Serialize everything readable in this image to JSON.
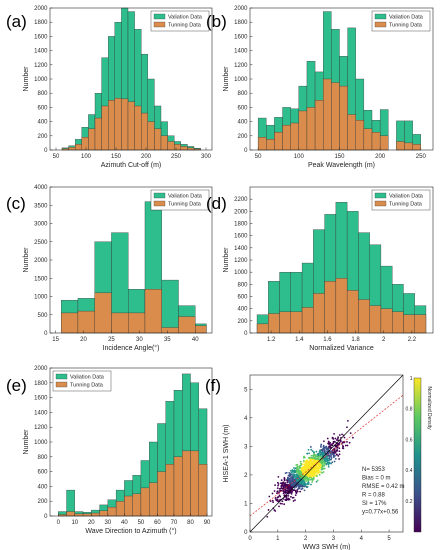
{
  "colors": {
    "validation": "#2ebd8c",
    "tuning": "#d98c4c",
    "bar_edge": "#333333"
  },
  "chart_data": [
    {
      "panel": "(a)",
      "type": "bar",
      "xlabel": "Azimuth Cut-off (m)",
      "ylabel": "Number",
      "xlim": [
        40,
        310
      ],
      "ylim": [
        0,
        2000
      ],
      "xticks": [
        50,
        100,
        150,
        200,
        250,
        300
      ],
      "yticks": [
        0,
        200,
        400,
        600,
        800,
        1000,
        1200,
        1400,
        1600,
        1800,
        2000
      ],
      "legend": [
        "Valiation Data",
        "Tunning Data"
      ],
      "legend_position": "top-right",
      "bin_edges": [
        60,
        71,
        82,
        93,
        104,
        115,
        126,
        137,
        148,
        159,
        170,
        181,
        192,
        203,
        214,
        225,
        236,
        247,
        258,
        269,
        280,
        291
      ],
      "series": [
        {
          "name": "Valiation Data",
          "values": [
            30,
            60,
            150,
            320,
            500,
            800,
            1300,
            1600,
            1800,
            2000,
            1950,
            1700,
            1350,
            1000,
            620,
            400,
            200,
            120,
            80,
            50,
            25
          ]
        },
        {
          "name": "Tunning Data",
          "values": [
            20,
            40,
            80,
            180,
            300,
            450,
            620,
            700,
            730,
            720,
            680,
            620,
            520,
            400,
            300,
            200,
            120,
            80,
            50,
            30,
            15
          ]
        }
      ]
    },
    {
      "panel": "(b)",
      "type": "bar",
      "xlabel": "Peak Wavelength (m)",
      "ylabel": "Number",
      "xlim": [
        40,
        265
      ],
      "ylim": [
        0,
        2000
      ],
      "xticks": [
        50,
        100,
        150,
        200,
        250
      ],
      "yticks": [
        0,
        200,
        400,
        600,
        800,
        1000,
        1200,
        1400,
        1600,
        1800,
        2000
      ],
      "legend": [
        "Valiation Data",
        "Tunning Data"
      ],
      "legend_position": "top-right",
      "bin_edges": [
        50,
        60,
        70,
        80,
        90,
        100,
        110,
        120,
        130,
        140,
        150,
        160,
        170,
        180,
        190,
        200,
        210,
        220,
        230,
        240,
        250
      ],
      "series": [
        {
          "name": "Valiation Data",
          "values": [
            450,
            350,
            460,
            600,
            580,
            900,
            1250,
            1100,
            1950,
            1700,
            1320,
            1720,
            1000,
            560,
            420,
            570,
            0,
            410,
            410,
            220
          ]
        },
        {
          "name": "Tunning Data",
          "values": [
            180,
            150,
            250,
            350,
            380,
            550,
            600,
            700,
            1000,
            950,
            900,
            500,
            420,
            300,
            250,
            200,
            0,
            120,
            100,
            80
          ]
        }
      ]
    },
    {
      "panel": "(c)",
      "type": "bar",
      "xlabel": "Incidence Angle(°)",
      "ylabel": "Number",
      "xlim": [
        14,
        43
      ],
      "ylim": [
        0,
        4000
      ],
      "xticks": [
        15,
        20,
        25,
        30,
        35,
        40
      ],
      "yticks": [
        0,
        500,
        1000,
        1500,
        2000,
        2500,
        3000,
        3500,
        4000
      ],
      "legend": [
        "Valiation Data",
        "Tunning Data"
      ],
      "legend_position": "top-right",
      "bin_edges": [
        16,
        19,
        22,
        25,
        28,
        31,
        34,
        37,
        40,
        42
      ],
      "series": [
        {
          "name": "Valiation Data",
          "values": [
            900,
            950,
            2500,
            2750,
            1200,
            3600,
            1450,
            750,
            250
          ]
        },
        {
          "name": "Tunning Data",
          "values": [
            550,
            600,
            1100,
            550,
            550,
            1200,
            150,
            450,
            200
          ]
        }
      ]
    },
    {
      "panel": "(d)",
      "type": "bar",
      "xlabel": "Normalized Variance",
      "ylabel": "Number",
      "xlim": [
        1.05,
        2.35
      ],
      "ylim": [
        0,
        2400
      ],
      "xticks": [
        1.2,
        1.4,
        1.6,
        1.8,
        2.0,
        2.2
      ],
      "yticks": [
        0,
        200,
        400,
        600,
        800,
        1000,
        1200,
        1400,
        1600,
        1800,
        2000,
        2200
      ],
      "legend": [
        "Valiation Data",
        "Tunning Data"
      ],
      "legend_position": "top-right",
      "bin_edges": [
        1.1,
        1.18,
        1.26,
        1.34,
        1.42,
        1.5,
        1.58,
        1.66,
        1.74,
        1.82,
        1.9,
        1.98,
        2.06,
        2.14,
        2.22,
        2.3
      ],
      "series": [
        {
          "name": "Valiation Data",
          "values": [
            300,
            850,
            1000,
            1000,
            1150,
            1700,
            1950,
            2150,
            2000,
            1650,
            1450,
            1100,
            800,
            650,
            450
          ]
        },
        {
          "name": "Tunning Data",
          "values": [
            150,
            320,
            350,
            350,
            420,
            650,
            850,
            900,
            700,
            550,
            450,
            400,
            350,
            300,
            300
          ]
        }
      ]
    },
    {
      "panel": "(e)",
      "type": "bar",
      "xlabel": "Wave Direction to Azimuth (°)",
      "ylabel": "Number",
      "xlim": [
        -5,
        93
      ],
      "ylim": [
        0,
        2000
      ],
      "xticks": [
        0,
        10,
        20,
        30,
        40,
        50,
        60,
        70,
        80,
        90
      ],
      "yticks": [
        0,
        200,
        400,
        600,
        800,
        1000,
        1200,
        1400,
        1600,
        1800,
        2000
      ],
      "legend": [
        "Valiation Data",
        "Tunning Data"
      ],
      "legend_position": "top-left",
      "bin_edges": [
        0,
        5,
        10,
        15,
        20,
        25,
        30,
        35,
        40,
        45,
        50,
        55,
        60,
        65,
        70,
        75,
        80,
        85,
        90
      ],
      "series": [
        {
          "name": "Valiation Data",
          "values": [
            60,
            350,
            60,
            50,
            80,
            150,
            220,
            350,
            480,
            550,
            750,
            1000,
            1250,
            1550,
            1700,
            1920,
            1800,
            1450
          ]
        },
        {
          "name": "Tunning Data",
          "values": [
            20,
            60,
            30,
            30,
            40,
            70,
            120,
            200,
            270,
            300,
            380,
            450,
            600,
            700,
            800,
            880,
            880,
            700
          ]
        }
      ]
    },
    {
      "panel": "(f)",
      "type": "scatter",
      "xlabel": "WW3 SWH (m)",
      "ylabel": "HISEA-1 SWH (m)",
      "xlim": [
        0,
        5.5
      ],
      "ylim": [
        0,
        5.5
      ],
      "xticks": [
        0,
        1,
        2,
        3,
        4,
        5
      ],
      "yticks": [
        0,
        1,
        2,
        3,
        4,
        5
      ],
      "colorbar": {
        "label": "Normalized Density",
        "ticks": [
          0.2,
          0.4,
          0.6,
          0.8,
          1
        ],
        "range": [
          0,
          1
        ]
      },
      "fit_line": {
        "slope": 0.77,
        "intercept": 0.56
      },
      "stats": [
        "N= 5353",
        "Bias = 0 m",
        "RMSE = 0.42 m",
        "R = 0.88",
        "SI = 17%",
        "y=0.77x+0.56"
      ]
    }
  ]
}
